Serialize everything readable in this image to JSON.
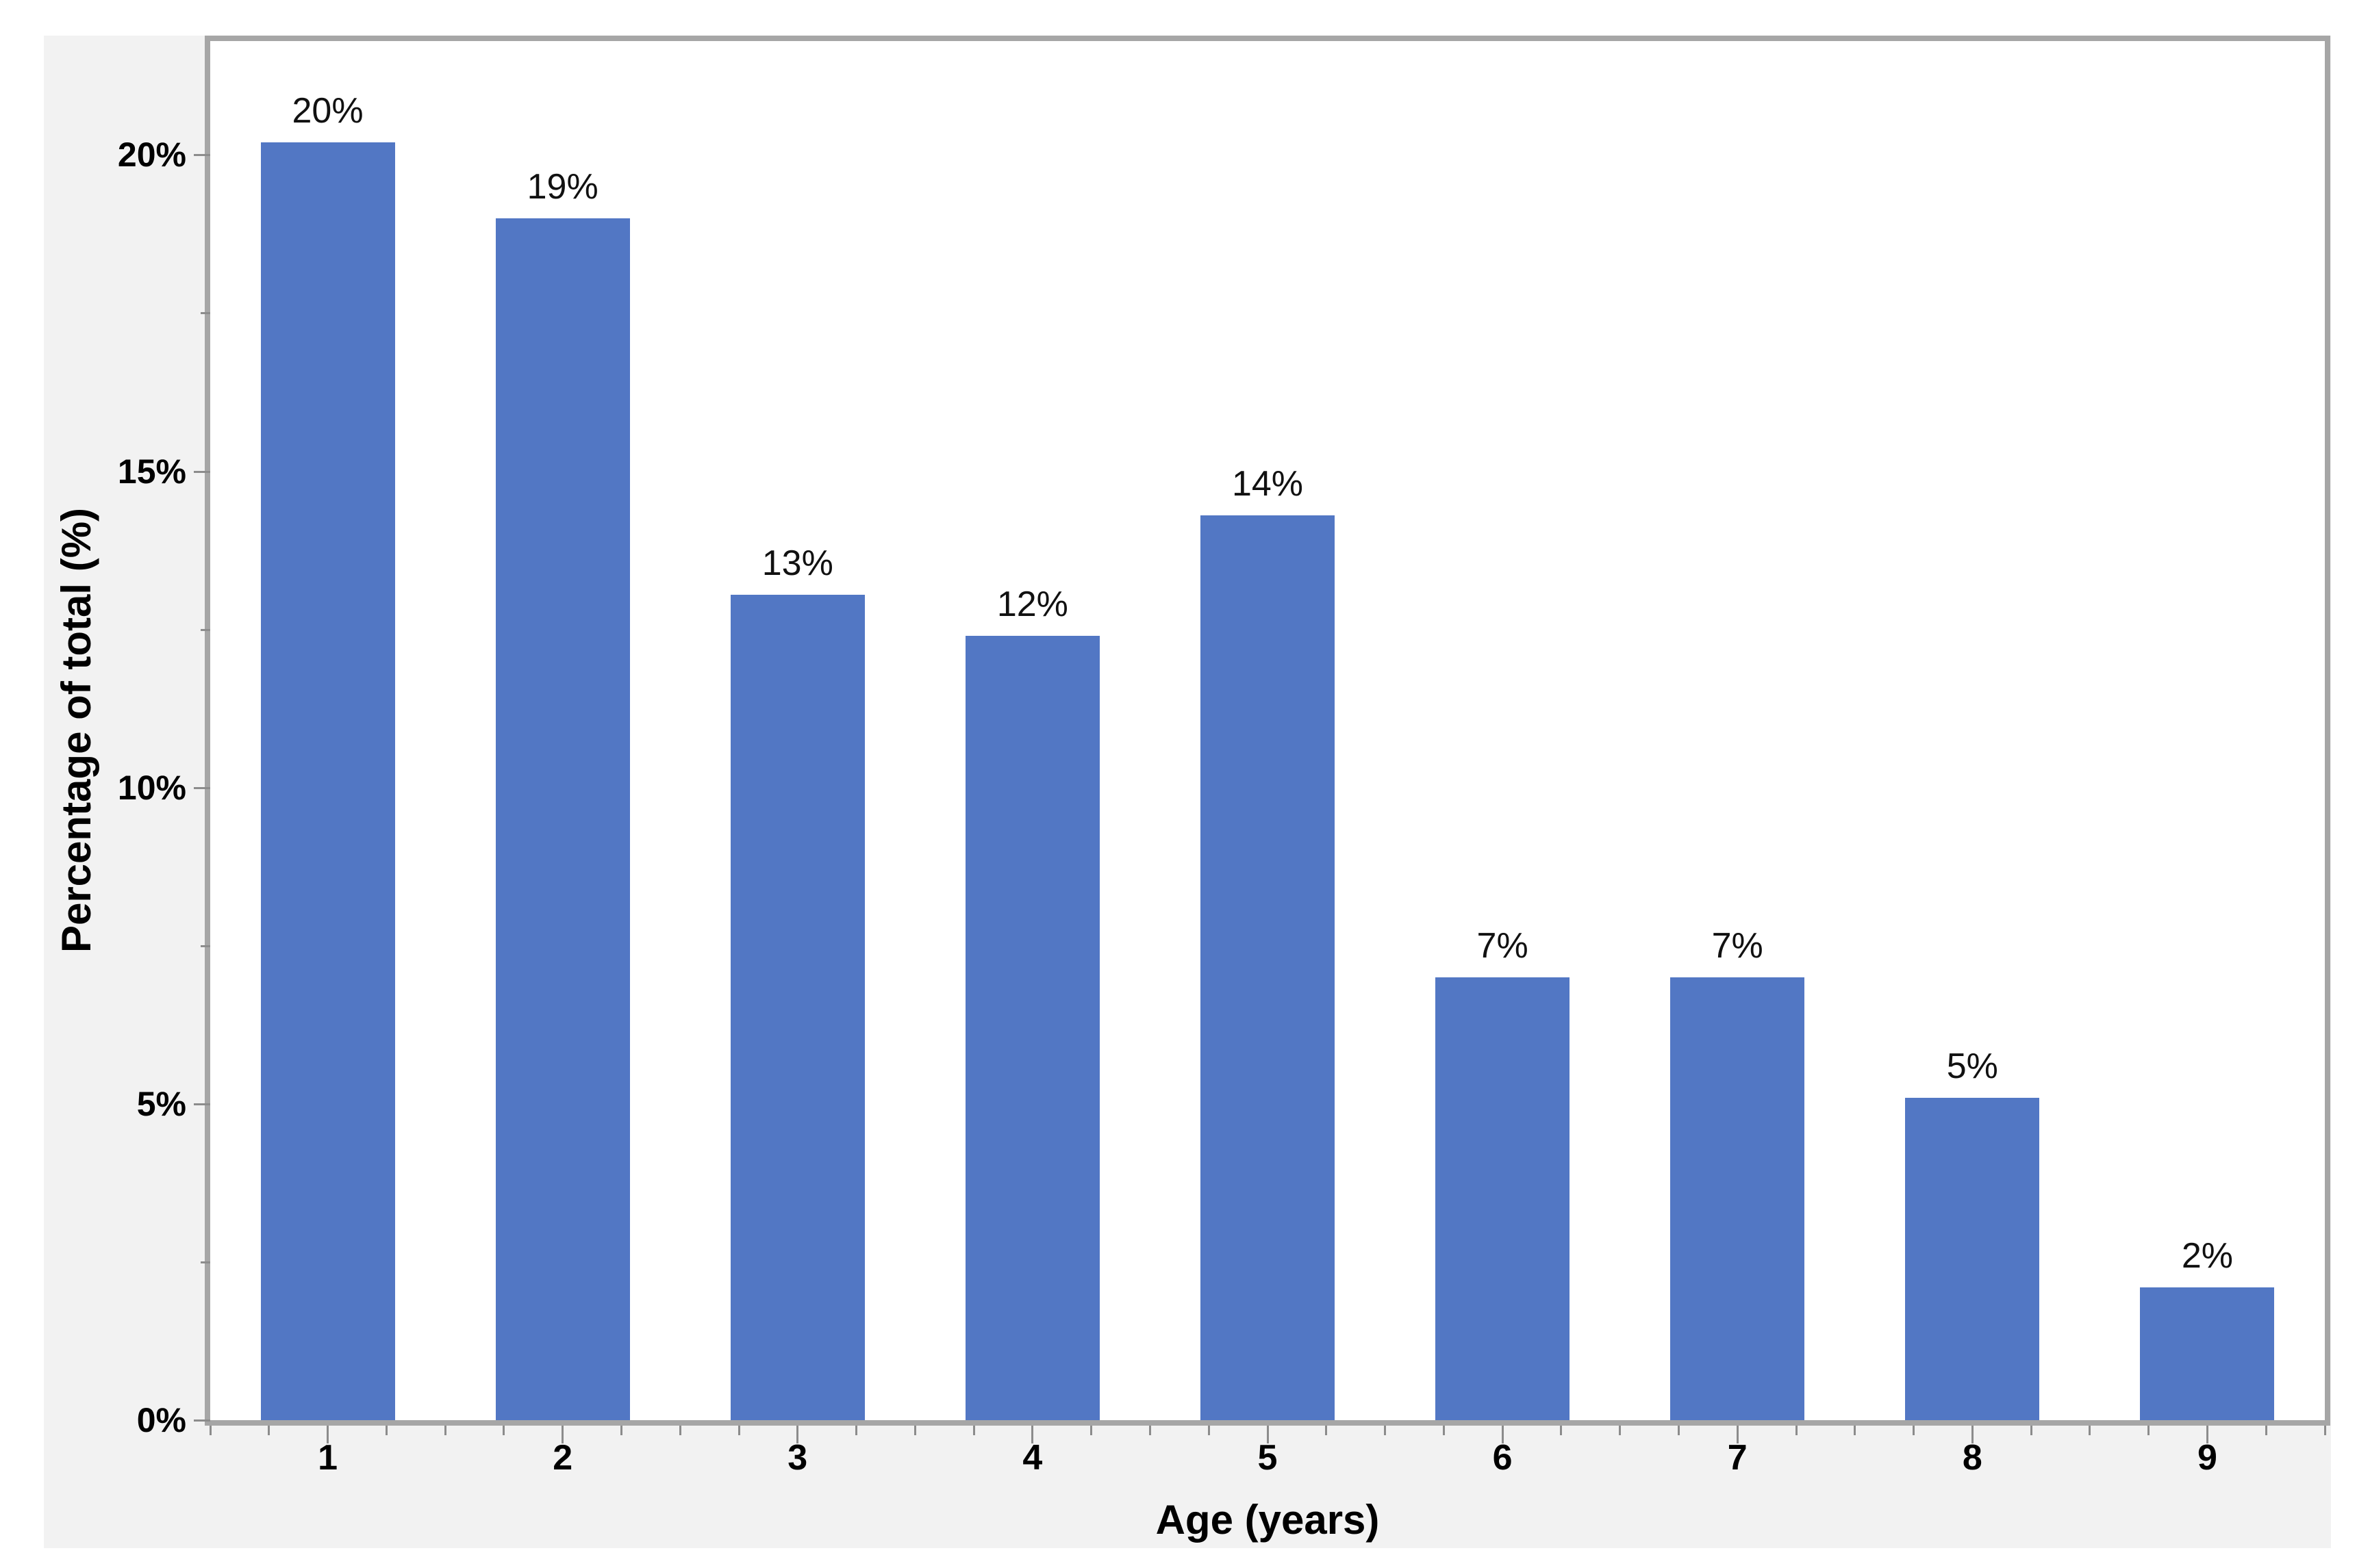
{
  "style": {
    "page_background": "#ffffff",
    "canvas_background": "#f2f2f2",
    "plot_background": "#ffffff",
    "frame_color": "#a6a6a6",
    "tick_color": "#8c8c8c",
    "bar_color": "#5277c4",
    "text_color": "#000000",
    "bar_label_color": "#111111"
  },
  "chart_data": {
    "type": "bar",
    "title": "",
    "xlabel": "Age (years)",
    "ylabel": "Percentage of total (%)",
    "categories": [
      "1",
      "2",
      "3",
      "4",
      "5",
      "6",
      "7",
      "8",
      "9"
    ],
    "values": [
      20,
      19,
      13,
      12,
      14,
      7,
      7,
      5,
      2
    ],
    "bar_labels": [
      "20%",
      "19%",
      "13%",
      "12%",
      "14%",
      "7%",
      "7%",
      "5%",
      "2%"
    ],
    "bar_heights_pct": [
      20.2,
      19.0,
      13.05,
      12.4,
      14.3,
      7.0,
      7.0,
      5.1,
      2.1
    ],
    "ylim": [
      0,
      21.8
    ],
    "y_major_ticks": [
      0,
      5,
      10,
      15,
      20
    ],
    "y_major_tick_labels": [
      "0%",
      "5%",
      "10%",
      "15%",
      "20%"
    ],
    "y_minor_tick_step": 2.5,
    "x_minor_ticks_between_majors": 3,
    "grid": false,
    "legend": false,
    "bar_label_position": "above"
  }
}
